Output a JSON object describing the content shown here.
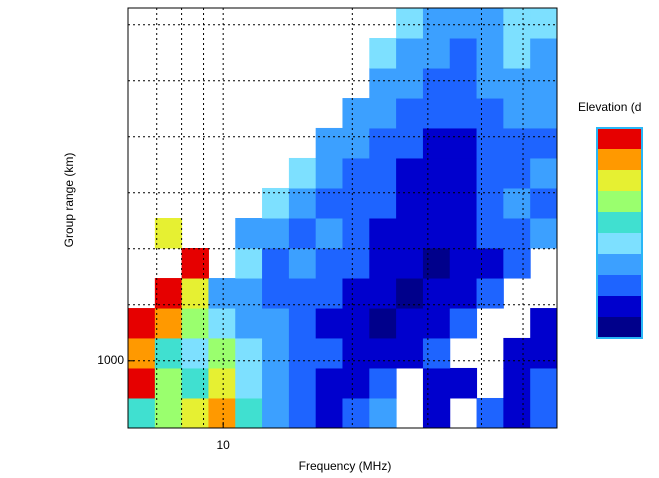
{
  "chart_data": {
    "type": "heatmap",
    "xlabel": "Frequency (MHz)",
    "ylabel": "Group range (km)",
    "colorbar_title": "Elevation (d",
    "xscale": "log",
    "xlim": [
      6,
      60
    ],
    "xticks": [
      10
    ],
    "xgrid": [
      7,
      8,
      9,
      10,
      20,
      30,
      40,
      50
    ],
    "ylim": [
      400,
      4150
    ],
    "yticks": [
      1000
    ],
    "ygrid": [
      1000,
      1500,
      2000,
      2500,
      3000,
      3500,
      4000
    ],
    "xbins": [
      6,
      6.93,
      8,
      9.24,
      10.67,
      12.32,
      14.23,
      16.43,
      18.97,
      21.91,
      25.3,
      29.22,
      33.74,
      38.96,
      44.99,
      51.96,
      60
    ],
    "ybins": [
      400,
      668,
      936,
      1204,
      1471,
      1739,
      2007,
      2275,
      2543,
      2811,
      3079,
      3346,
      3614,
      3882,
      4150
    ],
    "colors": [
      "#00008b",
      "#0000cd",
      "#1e64ff",
      "#3ca0ff",
      "#7de0ff",
      "#40e0d0",
      "#9aff6e",
      "#e6f032",
      "#ff9900",
      "#e60000"
    ],
    "z": [
      [
        5,
        6,
        7,
        8,
        5,
        3,
        2,
        1,
        2,
        3,
        null,
        1,
        null,
        2,
        1,
        2
      ],
      [
        9,
        6,
        5,
        7,
        4,
        3,
        2,
        1,
        1,
        2,
        null,
        1,
        1,
        null,
        1,
        2
      ],
      [
        8,
        5,
        4,
        6,
        4,
        3,
        2,
        2,
        1,
        1,
        1,
        2,
        null,
        null,
        1,
        1
      ],
      [
        9,
        8,
        6,
        4,
        3,
        3,
        2,
        1,
        1,
        0,
        1,
        1,
        2,
        null,
        null,
        1
      ],
      [
        null,
        9,
        7,
        3,
        3,
        2,
        2,
        2,
        1,
        1,
        0,
        1,
        1,
        2,
        null,
        null
      ],
      [
        null,
        null,
        9,
        null,
        4,
        2,
        3,
        2,
        2,
        1,
        1,
        0,
        1,
        1,
        2,
        null
      ],
      [
        null,
        7,
        null,
        null,
        3,
        3,
        2,
        3,
        2,
        1,
        1,
        1,
        1,
        2,
        2,
        3
      ],
      [
        null,
        null,
        null,
        null,
        null,
        4,
        3,
        2,
        2,
        2,
        1,
        1,
        1,
        2,
        3,
        2
      ],
      [
        null,
        null,
        null,
        null,
        null,
        null,
        4,
        3,
        2,
        2,
        1,
        1,
        1,
        2,
        2,
        3
      ],
      [
        null,
        null,
        null,
        null,
        null,
        null,
        null,
        3,
        3,
        2,
        2,
        1,
        1,
        2,
        2,
        2
      ],
      [
        null,
        null,
        null,
        null,
        null,
        null,
        null,
        null,
        3,
        3,
        2,
        2,
        2,
        2,
        3,
        3
      ],
      [
        null,
        null,
        null,
        null,
        null,
        null,
        null,
        null,
        null,
        3,
        3,
        2,
        2,
        3,
        3,
        3
      ],
      [
        null,
        null,
        null,
        null,
        null,
        null,
        null,
        null,
        null,
        4,
        3,
        3,
        2,
        3,
        4,
        3
      ],
      [
        null,
        null,
        null,
        null,
        null,
        null,
        null,
        null,
        null,
        null,
        4,
        3,
        3,
        3,
        4,
        4
      ]
    ]
  }
}
